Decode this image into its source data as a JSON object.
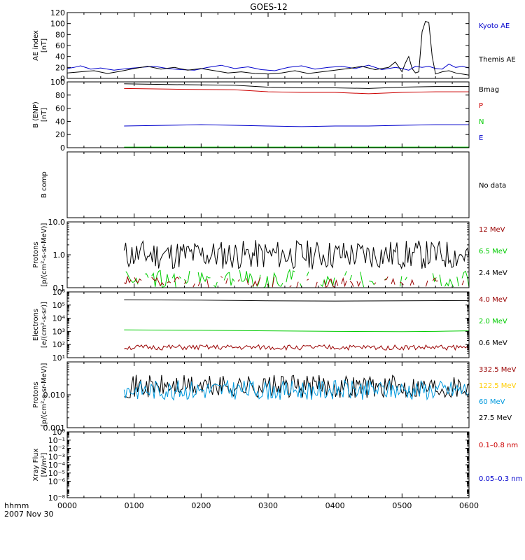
{
  "title": "GOES-12",
  "footer": {
    "axis_label": "hhmm",
    "date": "2007 Nov 30"
  },
  "x_ticks": [
    "0000",
    "0100",
    "0200",
    "0300",
    "0400",
    "0500",
    "0600"
  ],
  "no_data_label": "No data",
  "colors": {
    "black": "#000000",
    "blue": "#0000cc",
    "red": "#cc0000",
    "dark_red": "#990000",
    "green": "#00cc00",
    "yellow": "#ffcc00",
    "light_blue": "#0099dd"
  },
  "chart_data": [
    {
      "id": "ae",
      "type": "line",
      "ylabel": [
        "AE index",
        "[nT]"
      ],
      "yscale": "linear",
      "ylim": [
        0,
        120
      ],
      "ticks": [
        {
          "v": 0,
          "label": "0"
        },
        {
          "v": 20,
          "label": "20"
        },
        {
          "v": 40,
          "label": "40"
        },
        {
          "v": 60,
          "label": "60"
        },
        {
          "v": 80,
          "label": "80"
        },
        {
          "v": 100,
          "label": "100"
        },
        {
          "v": 120,
          "label": "120"
        }
      ],
      "legend": [
        {
          "label": "Kyoto AE",
          "color": "#0000cc"
        },
        {
          "label": "Themis AE",
          "color": "#000000"
        }
      ],
      "series": [
        {
          "name": "Kyoto AE",
          "color": "#0000cc",
          "x": [
            0,
            0.1,
            0.2,
            0.35,
            0.5,
            0.7,
            0.9,
            1.1,
            1.3,
            1.5,
            1.7,
            1.9,
            2.1,
            2.3,
            2.5,
            2.7,
            2.9,
            3.1,
            3.3,
            3.5,
            3.7,
            3.9,
            4.1,
            4.3,
            4.5,
            4.7,
            4.9,
            5.0,
            5.1,
            5.2,
            5.3,
            5.4,
            5.5,
            5.6,
            5.7,
            5.8,
            5.9,
            6.0
          ],
          "y": [
            18,
            20,
            23,
            17,
            19,
            15,
            18,
            20,
            22,
            18,
            16,
            15,
            20,
            24,
            18,
            21,
            16,
            14,
            20,
            23,
            17,
            20,
            22,
            18,
            24,
            16,
            20,
            18,
            15,
            22,
            20,
            22,
            18,
            17,
            26,
            20,
            22,
            19
          ]
        },
        {
          "name": "Themis AE",
          "color": "#000000",
          "x": [
            0,
            0.2,
            0.4,
            0.6,
            0.8,
            1.0,
            1.2,
            1.4,
            1.6,
            1.8,
            2.0,
            2.2,
            2.4,
            2.6,
            2.8,
            3.0,
            3.2,
            3.4,
            3.6,
            3.8,
            4.0,
            4.2,
            4.4,
            4.6,
            4.8,
            4.9,
            5.0,
            5.05,
            5.1,
            5.15,
            5.2,
            5.25,
            5.3,
            5.35,
            5.4,
            5.45,
            5.5,
            5.55,
            5.6,
            5.7,
            5.8,
            5.9,
            6.0
          ],
          "y": [
            10,
            12,
            14,
            9,
            13,
            18,
            22,
            17,
            20,
            15,
            18,
            14,
            10,
            12,
            9,
            8,
            10,
            14,
            9,
            12,
            15,
            18,
            22,
            16,
            20,
            30,
            12,
            28,
            40,
            18,
            10,
            12,
            85,
            104,
            102,
            40,
            8,
            10,
            12,
            14,
            10,
            8,
            6
          ]
        }
      ]
    },
    {
      "id": "b",
      "type": "line",
      "ylabel": [
        "B (ENP)",
        "[nT]"
      ],
      "yscale": "linear",
      "ylim": [
        0,
        100
      ],
      "ticks": [
        {
          "v": 0,
          "label": "0"
        },
        {
          "v": 20,
          "label": "20"
        },
        {
          "v": 40,
          "label": "40"
        },
        {
          "v": 60,
          "label": "60"
        },
        {
          "v": 80,
          "label": "80"
        },
        {
          "v": 100,
          "label": "100"
        }
      ],
      "legend": [
        {
          "label": "Bmag",
          "color": "#000000"
        },
        {
          "label": "P",
          "color": "#cc0000"
        },
        {
          "label": "N",
          "color": "#00cc00"
        },
        {
          "label": "E",
          "color": "#0000cc"
        }
      ],
      "series": [
        {
          "name": "Bmag",
          "color": "#000000",
          "x": [
            0.85,
            1.5,
            2.5,
            3.0,
            3.5,
            4.0,
            4.5,
            5.0,
            5.5,
            6.0
          ],
          "y": [
            97,
            96,
            95,
            92,
            91,
            91,
            90,
            92,
            93,
            93
          ]
        },
        {
          "name": "P",
          "color": "#cc0000",
          "x": [
            0.85,
            1.5,
            2.5,
            3.0,
            3.5,
            4.0,
            4.5,
            5.0,
            5.5,
            6.0
          ],
          "y": [
            90,
            89,
            88,
            85,
            84,
            84,
            82,
            84,
            85,
            85
          ]
        },
        {
          "name": "N",
          "color": "#00cc00",
          "x": [
            0.85,
            2.0,
            3.0,
            4.0,
            5.0,
            6.0
          ],
          "y": [
            1,
            1,
            1,
            1,
            1,
            1
          ]
        },
        {
          "name": "E",
          "color": "#0000cc",
          "x": [
            0.85,
            1.5,
            2.0,
            2.5,
            3.0,
            3.5,
            4.0,
            4.5,
            5.0,
            5.5,
            6.0
          ],
          "y": [
            33,
            34,
            35,
            34,
            33,
            32,
            33,
            33,
            34,
            35,
            35
          ]
        }
      ]
    },
    {
      "id": "bcomp",
      "type": "line",
      "ylabel": [
        "B comp"
      ],
      "no_data": true,
      "yscale": "linear",
      "ylim": [
        0,
        1
      ],
      "ticks": [],
      "legend": [],
      "series": []
    },
    {
      "id": "protons1",
      "type": "line",
      "ylabel": [
        "Protons",
        "[p/(cm²-s-sr-MeV)]"
      ],
      "yscale": "log",
      "ylim": [
        0.1,
        10
      ],
      "ticks": [
        {
          "v": 0.1,
          "label": "0.1"
        },
        {
          "v": 1,
          "label": "1.0"
        },
        {
          "v": 10,
          "label": "10.0"
        }
      ],
      "legend": [
        {
          "label": "12 MeV",
          "color": "#990000"
        },
        {
          "label": "6.5 MeV",
          "color": "#00cc00"
        },
        {
          "label": "2.4 MeV",
          "color": "#000000"
        }
      ],
      "series": [
        {
          "name": "2.4 MeV",
          "color": "#000000",
          "noisy": true,
          "x_start": 0.85,
          "x_end": 6.0,
          "n": 220,
          "center": 1.0,
          "spread": 0.45,
          "seed": 11
        },
        {
          "name": "6.5 MeV",
          "color": "#00cc00",
          "noisy": true,
          "sparse": true,
          "x_start": 0.85,
          "x_end": 6.0,
          "n": 200,
          "center": 0.14,
          "spread": 0.4,
          "seed": 23
        },
        {
          "name": "12 MeV",
          "color": "#990000",
          "noisy": true,
          "sparse": true,
          "x_start": 0.85,
          "x_end": 6.0,
          "n": 200,
          "center": 0.11,
          "spread": 0.3,
          "seed": 37
        }
      ]
    },
    {
      "id": "electrons",
      "type": "line",
      "ylabel": [
        "Electrons",
        "[e/(cm²-s-sr)]"
      ],
      "yscale": "log",
      "ylim": [
        10,
        1000000
      ],
      "ticks": [
        {
          "v": 10,
          "label": "10¹"
        },
        {
          "v": 100,
          "label": "10²"
        },
        {
          "v": 1000,
          "label": "10³"
        },
        {
          "v": 10000,
          "label": "10⁴"
        },
        {
          "v": 100000,
          "label": "10⁵"
        },
        {
          "v": 1000000,
          "label": "10⁶"
        }
      ],
      "legend": [
        {
          "label": "4.0 MeV",
          "color": "#990000"
        },
        {
          "label": "2.0 MeV",
          "color": "#00cc00"
        },
        {
          "label": "0.6 MeV",
          "color": "#000000"
        }
      ],
      "series": [
        {
          "name": "0.6 MeV",
          "color": "#000000",
          "x": [
            0.85,
            2.0,
            3.0,
            4.0,
            5.0,
            6.0
          ],
          "y": [
            250000,
            240000,
            210000,
            200000,
            210000,
            220000
          ]
        },
        {
          "name": "2.0 MeV",
          "color": "#00cc00",
          "x": [
            0.85,
            2.0,
            3.0,
            4.0,
            5.0,
            5.5,
            6.0
          ],
          "y": [
            1300,
            1200,
            1100,
            1000,
            950,
            1000,
            1100
          ]
        },
        {
          "name": "4.0 MeV",
          "color": "#990000",
          "noisy": true,
          "x_start": 0.85,
          "x_end": 6.0,
          "n": 200,
          "center": 60,
          "spread": 0.2,
          "seed": 51
        }
      ]
    },
    {
      "id": "protons2",
      "type": "line",
      "ylabel": [
        "Protons",
        "[p/(cm²-s-sr-MeV)]"
      ],
      "yscale": "log",
      "ylim": [
        0.001,
        0.1
      ],
      "ticks": [
        {
          "v": 0.001,
          "label": "0.001"
        },
        {
          "v": 0.01,
          "label": "0.010"
        }
      ],
      "legend": [
        {
          "label": "332.5 MeV",
          "color": "#990000"
        },
        {
          "label": "122.5 MeV",
          "color": "#ffcc00"
        },
        {
          "label": "60 MeV",
          "color": "#0099dd"
        },
        {
          "label": "27.5 MeV",
          "color": "#000000"
        }
      ],
      "series": [
        {
          "name": "27.5 MeV",
          "color": "#000000",
          "noisy": true,
          "x_start": 0.85,
          "x_end": 6.0,
          "n": 230,
          "center": 0.018,
          "spread": 0.35,
          "seed": 71
        },
        {
          "name": "60 MeV",
          "color": "#0099dd",
          "noisy": true,
          "x_start": 0.85,
          "x_end": 6.0,
          "n": 230,
          "center": 0.014,
          "spread": 0.3,
          "seed": 83
        }
      ]
    },
    {
      "id": "xray",
      "type": "line",
      "ylabel": [
        "Xray Flux",
        "[W/m²]"
      ],
      "yscale": "log",
      "ylim": [
        1e-08,
        1
      ],
      "ticks": [
        {
          "v": 1e-08,
          "label": "10⁻⁸"
        },
        {
          "v": 1e-06,
          "label": "10⁻⁶"
        },
        {
          "v": 1e-05,
          "label": "10⁻⁵"
        },
        {
          "v": 0.0001,
          "label": "10⁻⁴"
        },
        {
          "v": 0.001,
          "label": "10⁻³"
        },
        {
          "v": 0.01,
          "label": "10⁻²"
        },
        {
          "v": 0.1,
          "label": "10⁻¹"
        },
        {
          "v": 1,
          "label": "10⁰"
        }
      ],
      "legend": [
        {
          "label": "0.1–0.8 nm",
          "color": "#cc0000"
        },
        {
          "label": "0.05–0.3 nm",
          "color": "#0000cc"
        }
      ],
      "series": []
    }
  ]
}
